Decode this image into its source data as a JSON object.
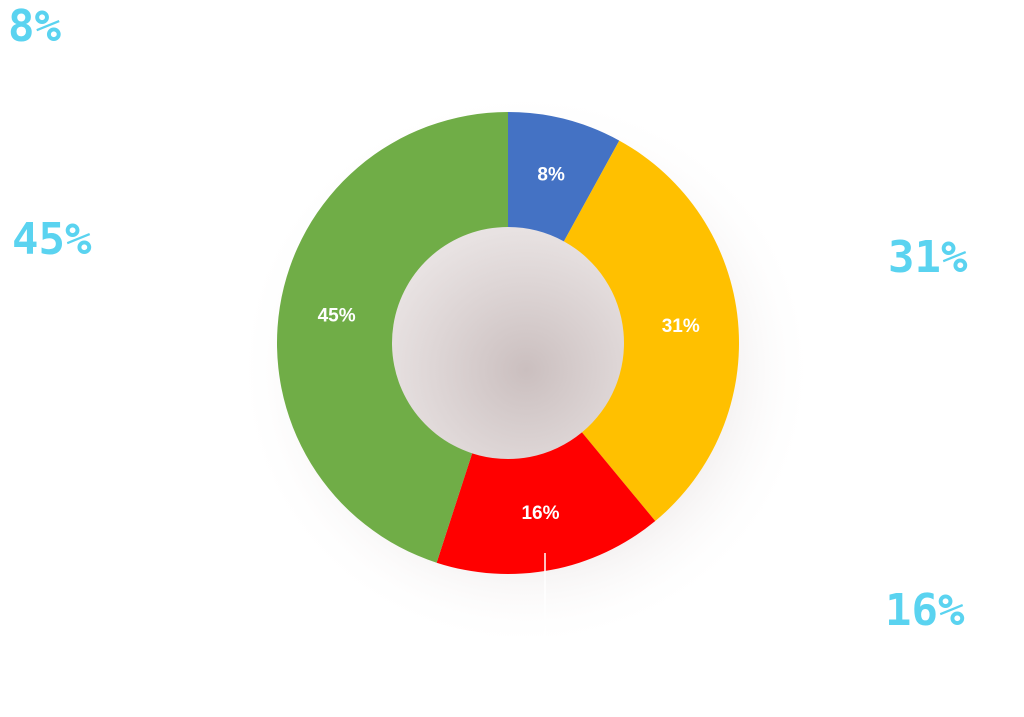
{
  "chart_data": {
    "type": "pie",
    "variant": "donut",
    "title": "",
    "categories": [
      "",
      "",
      "",
      ""
    ],
    "values": [
      8,
      31,
      16,
      45
    ],
    "unit": "%",
    "colors": [
      "#4472c4",
      "#ffc000",
      "#ff0000",
      "#70ad47"
    ],
    "inner_labels": [
      "8%",
      "31%",
      "16%",
      "45%"
    ],
    "callout_labels": [
      "8%",
      "31%",
      "16%",
      "45%"
    ],
    "callout_color": "#5ad3f0",
    "legend": "none",
    "start_angle": "12 o'clock",
    "direction": "clockwise"
  }
}
